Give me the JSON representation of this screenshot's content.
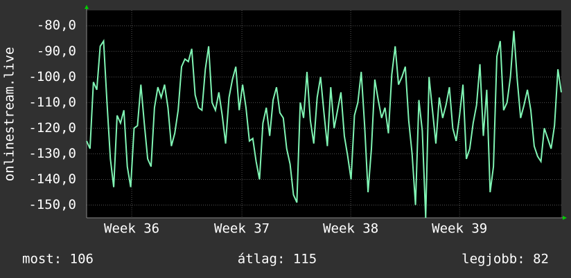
{
  "chart_data": {
    "type": "line",
    "ylabel": "onlinestream.live",
    "x": [
      0,
      1,
      2,
      3,
      4,
      5,
      6,
      7,
      8,
      9,
      10,
      11,
      12,
      13,
      14,
      15,
      16,
      17,
      18,
      19,
      20,
      21,
      22,
      23,
      24,
      25,
      26,
      27,
      28,
      29,
      30,
      31,
      32,
      33,
      34,
      35,
      36,
      37,
      38,
      39,
      40,
      41,
      42,
      43,
      44,
      45,
      46,
      47,
      48,
      49,
      50,
      51,
      52,
      53,
      54,
      55,
      56,
      57,
      58,
      59,
      60,
      61,
      62,
      63,
      64,
      65,
      66,
      67,
      68,
      69,
      70,
      71,
      72,
      73,
      74,
      75,
      76,
      77,
      78,
      79,
      80,
      81,
      82,
      83,
      84,
      85,
      86,
      87,
      88,
      89,
      90,
      91,
      92,
      93,
      94,
      95,
      96,
      97,
      98,
      99,
      100,
      101,
      102,
      103,
      104,
      105,
      106,
      107,
      108,
      109,
      110,
      111,
      112,
      113,
      114,
      115,
      116,
      117,
      118,
      119,
      120,
      121,
      122,
      123,
      124,
      125,
      126,
      127,
      128,
      129,
      130,
      131,
      132,
      133,
      134,
      135,
      136,
      137,
      138,
      139,
      140
    ],
    "series": [
      {
        "color": "#80f5b4",
        "values": [
          -125,
          -128,
          -102,
          -105,
          -88,
          -86,
          -110,
          -132,
          -143,
          -115,
          -118,
          -113,
          -135,
          -143,
          -120,
          -119,
          -103,
          -118,
          -132,
          -135,
          -112,
          -104,
          -108,
          -103,
          -112,
          -127,
          -122,
          -113,
          -96,
          -93,
          -94,
          -89,
          -107,
          -112,
          -113,
          -97,
          -88,
          -110,
          -113,
          -106,
          -115,
          -126,
          -108,
          -101,
          -96,
          -113,
          -103,
          -112,
          -125,
          -124,
          -133,
          -140,
          -118,
          -112,
          -123,
          -109,
          -104,
          -114,
          -116,
          -128,
          -134,
          -146,
          -149,
          -110,
          -116,
          -98,
          -117,
          -126,
          -108,
          -100,
          -114,
          -127,
          -104,
          -120,
          -113,
          -106,
          -123,
          -131,
          -140,
          -115,
          -110,
          -98,
          -119,
          -145,
          -128,
          -101,
          -109,
          -116,
          -112,
          -122,
          -99,
          -88,
          -103,
          -100,
          -96,
          -117,
          -130,
          -150,
          -109,
          -121,
          -155,
          -100,
          -113,
          -126,
          -108,
          -116,
          -111,
          -104,
          -120,
          -125,
          -115,
          -103,
          -132,
          -128,
          -118,
          -111,
          -95,
          -123,
          -105,
          -145,
          -135,
          -92,
          -86,
          -113,
          -110,
          -100,
          -82,
          -101,
          -116,
          -111,
          -105,
          -113,
          -127,
          -131,
          -133,
          -120,
          -124,
          -128,
          -119,
          -97,
          -106
        ]
      }
    ],
    "xlim": [
      0,
      140
    ],
    "xticks": [
      {
        "value": 13.3,
        "label": "Week 36"
      },
      {
        "value": 45.8,
        "label": "Week 37"
      },
      {
        "value": 77.9,
        "label": "Week 38"
      },
      {
        "value": 110,
        "label": "Week 39"
      }
    ],
    "ylim": [
      -155,
      -74
    ],
    "yticks": [
      {
        "value": -150,
        "label": "-150,0"
      },
      {
        "value": -140,
        "label": "-140,0"
      },
      {
        "value": -130,
        "label": "-130,0"
      },
      {
        "value": -120,
        "label": "-120,0"
      },
      {
        "value": -110,
        "label": "-110,0"
      },
      {
        "value": -100,
        "label": "-100,0"
      },
      {
        "value": -90,
        "label": "-90,0"
      },
      {
        "value": -80,
        "label": "-80,0"
      }
    ],
    "grid": true,
    "stats": [
      "most: 106",
      "átlag: 115",
      "legjobb: 82"
    ]
  }
}
